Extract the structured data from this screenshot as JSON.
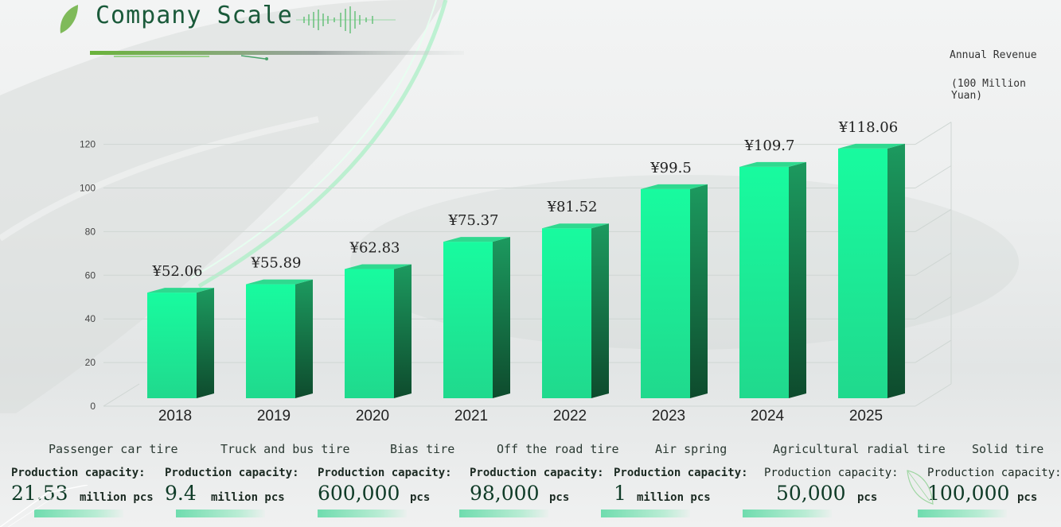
{
  "header": {
    "title": "Company Scale"
  },
  "unit": {
    "line1": "Annual Revenue",
    "line2": "(100 Million Yuan)"
  },
  "chart_data": {
    "type": "bar",
    "title": "",
    "xlabel": "",
    "ylabel": "",
    "categories": [
      "2018",
      "2019",
      "2020",
      "2021",
      "2022",
      "2023",
      "2024",
      "2025"
    ],
    "values": [
      52.06,
      55.89,
      62.83,
      75.37,
      81.52,
      99.5,
      109.7,
      118.06
    ],
    "data_labels": [
      "¥52.06",
      "¥55.89",
      "¥62.83",
      "¥75.37",
      "¥81.52",
      "¥99.5",
      "¥109.7",
      "¥118.06"
    ],
    "yticks": [
      "0",
      "20",
      "40",
      "60",
      "80",
      "100",
      "120"
    ],
    "ylim": [
      0,
      130
    ],
    "grid": true,
    "legend": "none",
    "colors": {
      "bar_front": "#18f59b",
      "bar_side": "#16884f",
      "bar_top": "#2fd98f"
    }
  },
  "products": [
    {
      "name": "Passenger car tire",
      "label": "Production capacity:",
      "number": "21.53",
      "unit": "million pcs"
    },
    {
      "name": "Truck and bus tire",
      "label": "Production capacity:",
      "number": "9.4",
      "unit": "million pcs"
    },
    {
      "name": "Bias tire",
      "label": "Production capacity:",
      "number": "600,000",
      "unit": "pcs"
    },
    {
      "name": "Off the road tire",
      "label": "Production capacity:",
      "number": "98,000",
      "unit": "pcs"
    },
    {
      "name": "Air spring",
      "label": "Production capacity:",
      "number": "1",
      "unit": "million pcs"
    },
    {
      "name": "Agricultural radial tire",
      "label": "Production capacity:",
      "number": "50,000",
      "unit": "pcs"
    },
    {
      "name": "Solid tire",
      "label": "Production capacity:",
      "number": "100,000",
      "unit": "pcs"
    }
  ]
}
